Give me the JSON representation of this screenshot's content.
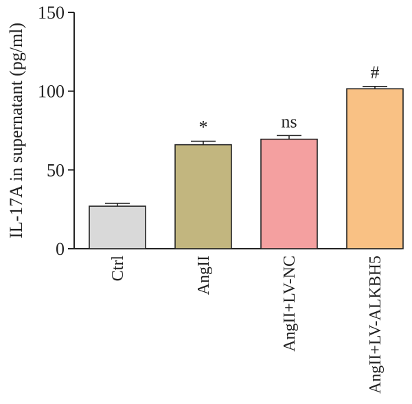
{
  "chart_data": {
    "type": "bar",
    "title": "",
    "xlabel": "",
    "ylabel": "IL-17A in supernatant (pg/ml)",
    "ylim": [
      0,
      150
    ],
    "yticks": [
      0,
      50,
      100,
      150
    ],
    "grid": false,
    "categories": [
      "Ctrl",
      "AngII",
      "AngII+LV-NC",
      "AngII+LV-ALKBH5"
    ],
    "values": [
      27,
      66,
      69.5,
      101.5
    ],
    "errors": [
      1.8,
      2.2,
      2.3,
      1.5
    ],
    "annotations": [
      "",
      "*",
      "ns",
      "#"
    ],
    "colors": [
      "#d9d9d9",
      "#c2b67f",
      "#f4a0a0",
      "#f9c184"
    ]
  }
}
